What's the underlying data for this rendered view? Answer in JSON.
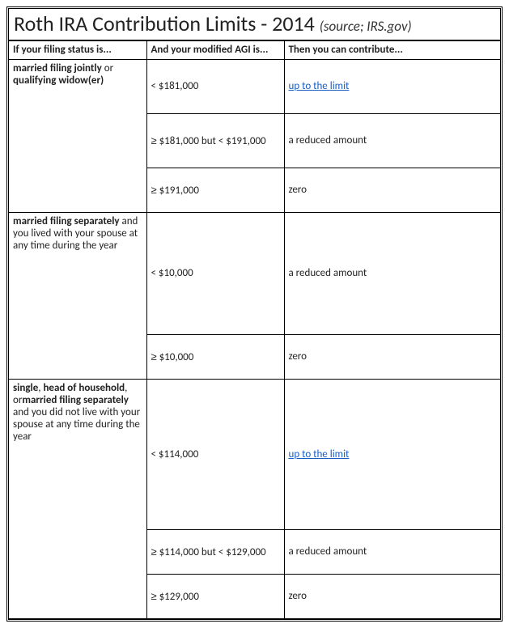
{
  "title_main": "Roth IRA Contribution Limits - 2014",
  "source_label": "(source; IRS.gov)",
  "headers": {
    "status": "If your filing status is...",
    "agi": "And your modified AGI is...",
    "contribute": "Then you can contribute..."
  },
  "link_text": "up to the limit",
  "link_href": "#",
  "statuses": {
    "s1": {
      "bold1": "married filing jointly",
      "plain1": " or ",
      "bold2": "qualifying widow(er)"
    },
    "s2": {
      "bold1": "married filing separately",
      "plain1": " and you lived with your spouse at any time during the year"
    },
    "s3": {
      "bold1": "single",
      "plain1": ", ",
      "bold2": "head of household",
      "plain2": ", or",
      "bold3": "married filing separately",
      "plain3": " and you did not live with your spouse at any time during the year"
    }
  },
  "ge": "≥",
  "rows": {
    "r1": {
      "agi": "< $181,000"
    },
    "r2": {
      "agi_pre": " $181,000 but < $191,000",
      "contrib": "a reduced amount"
    },
    "r3": {
      "agi_pre": " $191,000",
      "contrib": "zero"
    },
    "r4": {
      "agi": "< $10,000",
      "contrib": "a reduced amount"
    },
    "r5": {
      "agi_pre": " $10,000",
      "contrib": "zero"
    },
    "r6": {
      "agi": "< $114,000"
    },
    "r7": {
      "agi_pre": " $114,000 but < $129,000",
      "contrib": "a reduced amount"
    },
    "r8": {
      "agi_pre": " $129,000",
      "contrib": "zero"
    }
  }
}
